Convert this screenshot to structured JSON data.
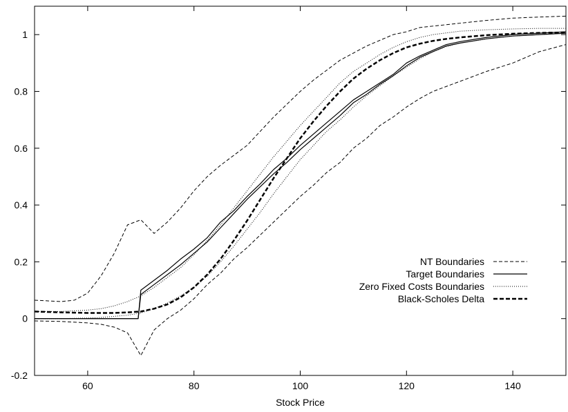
{
  "chart_data": {
    "type": "line",
    "title": "",
    "xlabel": "Stock Price",
    "ylabel": "",
    "xlim": [
      50,
      150
    ],
    "ylim": [
      -0.2,
      1.1
    ],
    "xticks": [
      60,
      80,
      100,
      120,
      140
    ],
    "xtick_labels": [
      "60",
      "80",
      "100",
      "120",
      "140"
    ],
    "yticks": [
      -0.2,
      0,
      0.2,
      0.4,
      0.6,
      0.8,
      1
    ],
    "ytick_labels": [
      "-0.2",
      "0",
      "0.2",
      "0.4",
      "0.6",
      "0.8",
      "1"
    ],
    "grid": false,
    "legend_position": "center-right",
    "series": [
      {
        "name": "NT Boundaries",
        "style": "dashed",
        "color": "#000000",
        "lines": [
          [
            [
              50,
              0.065
            ],
            [
              55,
              0.06
            ],
            [
              57.5,
              0.065
            ],
            [
              60,
              0.09
            ],
            [
              62.5,
              0.15
            ],
            [
              65,
              0.23
            ],
            [
              67.5,
              0.33
            ],
            [
              70,
              0.348
            ],
            [
              72.5,
              0.3
            ],
            [
              75,
              0.34
            ],
            [
              77.5,
              0.39
            ],
            [
              80,
              0.45
            ],
            [
              82.5,
              0.5
            ],
            [
              85,
              0.54
            ],
            [
              87.5,
              0.575
            ],
            [
              90,
              0.61
            ],
            [
              92.5,
              0.66
            ],
            [
              95,
              0.71
            ],
            [
              97.5,
              0.755
            ],
            [
              100,
              0.8
            ],
            [
              102.5,
              0.84
            ],
            [
              105,
              0.875
            ],
            [
              107.5,
              0.91
            ],
            [
              110,
              0.935
            ],
            [
              112.5,
              0.96
            ],
            [
              115,
              0.98
            ],
            [
              117.5,
              1.0
            ],
            [
              120,
              1.01
            ],
            [
              122.5,
              1.025
            ],
            [
              125,
              1.03
            ],
            [
              130,
              1.04
            ],
            [
              135,
              1.05
            ],
            [
              140,
              1.058
            ],
            [
              145,
              1.062
            ],
            [
              150,
              1.065
            ]
          ],
          [
            [
              50,
              -0.008
            ],
            [
              55,
              -0.01
            ],
            [
              60,
              -0.015
            ],
            [
              62.5,
              -0.02
            ],
            [
              65,
              -0.03
            ],
            [
              67.5,
              -0.05
            ],
            [
              70,
              -0.13
            ],
            [
              72.5,
              -0.04
            ],
            [
              75,
              0.0
            ],
            [
              77.5,
              0.03
            ],
            [
              80,
              0.07
            ],
            [
              82.5,
              0.12
            ],
            [
              85,
              0.16
            ],
            [
              87.5,
              0.21
            ],
            [
              90,
              0.25
            ],
            [
              92.5,
              0.295
            ],
            [
              95,
              0.34
            ],
            [
              97.5,
              0.385
            ],
            [
              100,
              0.43
            ],
            [
              102.5,
              0.47
            ],
            [
              105,
              0.515
            ],
            [
              107.5,
              0.55
            ],
            [
              110,
              0.6
            ],
            [
              112.5,
              0.635
            ],
            [
              115,
              0.68
            ],
            [
              117.5,
              0.71
            ],
            [
              120,
              0.745
            ],
            [
              122.5,
              0.775
            ],
            [
              125,
              0.8
            ],
            [
              130,
              0.835
            ],
            [
              135,
              0.87
            ],
            [
              140,
              0.9
            ],
            [
              145,
              0.94
            ],
            [
              150,
              0.965
            ]
          ]
        ]
      },
      {
        "name": "Target Boundaries",
        "style": "solid",
        "color": "#000000",
        "lines": [
          [
            [
              50,
              0.0
            ],
            [
              60,
              0.0
            ],
            [
              69.5,
              0.0
            ],
            [
              70,
              0.1
            ],
            [
              72.5,
              0.135
            ],
            [
              75,
              0.17
            ],
            [
              77.5,
              0.21
            ],
            [
              80,
              0.245
            ],
            [
              82.5,
              0.285
            ],
            [
              85,
              0.34
            ],
            [
              87.5,
              0.38
            ],
            [
              90,
              0.43
            ],
            [
              92.5,
              0.475
            ],
            [
              95,
              0.525
            ],
            [
              97.5,
              0.565
            ],
            [
              100,
              0.61
            ],
            [
              102.5,
              0.65
            ],
            [
              105,
              0.69
            ],
            [
              107.5,
              0.73
            ],
            [
              110,
              0.77
            ],
            [
              112.5,
              0.8
            ],
            [
              115,
              0.83
            ],
            [
              117.5,
              0.86
            ],
            [
              120,
              0.9
            ],
            [
              122.5,
              0.925
            ],
            [
              125,
              0.945
            ],
            [
              127.5,
              0.965
            ],
            [
              130,
              0.975
            ],
            [
              135,
              0.99
            ],
            [
              140,
              1.0
            ],
            [
              145,
              1.005
            ],
            [
              150,
              1.01
            ]
          ],
          [
            [
              50,
              0.0
            ],
            [
              60,
              0.0
            ],
            [
              69.5,
              0.0
            ],
            [
              70,
              0.085
            ],
            [
              72.5,
              0.12
            ],
            [
              75,
              0.155
            ],
            [
              77.5,
              0.19
            ],
            [
              80,
              0.23
            ],
            [
              82.5,
              0.27
            ],
            [
              85,
              0.32
            ],
            [
              87.5,
              0.37
            ],
            [
              90,
              0.42
            ],
            [
              92.5,
              0.465
            ],
            [
              95,
              0.51
            ],
            [
              97.5,
              0.55
            ],
            [
              100,
              0.595
            ],
            [
              102.5,
              0.635
            ],
            [
              105,
              0.675
            ],
            [
              107.5,
              0.715
            ],
            [
              110,
              0.76
            ],
            [
              112.5,
              0.79
            ],
            [
              115,
              0.825
            ],
            [
              117.5,
              0.855
            ],
            [
              120,
              0.89
            ],
            [
              122.5,
              0.92
            ],
            [
              125,
              0.94
            ],
            [
              127.5,
              0.96
            ],
            [
              130,
              0.97
            ],
            [
              135,
              0.985
            ],
            [
              140,
              0.995
            ],
            [
              145,
              1.0
            ],
            [
              150,
              1.005
            ]
          ]
        ]
      },
      {
        "name": "Zero Fixed Costs Boundaries",
        "style": "dotted",
        "color": "#000000",
        "lines": [
          [
            [
              50,
              0.025
            ],
            [
              55,
              0.025
            ],
            [
              60,
              0.03
            ],
            [
              62.5,
              0.035
            ],
            [
              65,
              0.045
            ],
            [
              67.5,
              0.06
            ],
            [
              70,
              0.08
            ],
            [
              72.5,
              0.11
            ],
            [
              75,
              0.145
            ],
            [
              77.5,
              0.18
            ],
            [
              80,
              0.225
            ],
            [
              82.5,
              0.275
            ],
            [
              85,
              0.33
            ],
            [
              87.5,
              0.39
            ],
            [
              90,
              0.45
            ],
            [
              92.5,
              0.51
            ],
            [
              95,
              0.57
            ],
            [
              97.5,
              0.625
            ],
            [
              100,
              0.68
            ],
            [
              102.5,
              0.73
            ],
            [
              105,
              0.78
            ],
            [
              107.5,
              0.83
            ],
            [
              110,
              0.87
            ],
            [
              112.5,
              0.9
            ],
            [
              115,
              0.93
            ],
            [
              117.5,
              0.955
            ],
            [
              120,
              0.975
            ],
            [
              122.5,
              0.99
            ],
            [
              125,
              1.0
            ],
            [
              130,
              1.012
            ],
            [
              135,
              1.017
            ],
            [
              140,
              1.02
            ],
            [
              145,
              1.022
            ],
            [
              150,
              1.022
            ]
          ],
          [
            [
              50,
              0.0
            ],
            [
              55,
              0.0
            ],
            [
              60,
              0.002
            ],
            [
              62.5,
              0.004
            ],
            [
              65,
              0.008
            ],
            [
              67.5,
              0.012
            ],
            [
              70,
              0.02
            ],
            [
              72.5,
              0.035
            ],
            [
              75,
              0.055
            ],
            [
              77.5,
              0.08
            ],
            [
              80,
              0.11
            ],
            [
              82.5,
              0.15
            ],
            [
              85,
              0.2
            ],
            [
              87.5,
              0.255
            ],
            [
              90,
              0.315
            ],
            [
              92.5,
              0.375
            ],
            [
              95,
              0.44
            ],
            [
              97.5,
              0.5
            ],
            [
              100,
              0.56
            ],
            [
              102.5,
              0.61
            ],
            [
              105,
              0.66
            ],
            [
              107.5,
              0.7
            ],
            [
              110,
              0.745
            ],
            [
              112.5,
              0.785
            ],
            [
              115,
              0.82
            ],
            [
              117.5,
              0.855
            ],
            [
              120,
              0.885
            ],
            [
              122.5,
              0.915
            ],
            [
              125,
              0.94
            ],
            [
              127.5,
              0.958
            ],
            [
              130,
              0.97
            ],
            [
              135,
              0.985
            ],
            [
              140,
              0.995
            ],
            [
              145,
              1.0
            ],
            [
              150,
              1.005
            ]
          ]
        ]
      },
      {
        "name": "Black-Scholes Delta",
        "style": "thick-dashed",
        "color": "#000000",
        "lines": [
          [
            [
              50,
              0.025
            ],
            [
              55,
              0.022
            ],
            [
              60,
              0.02
            ],
            [
              65,
              0.02
            ],
            [
              67.5,
              0.022
            ],
            [
              70,
              0.025
            ],
            [
              72.5,
              0.035
            ],
            [
              75,
              0.05
            ],
            [
              77.5,
              0.075
            ],
            [
              80,
              0.11
            ],
            [
              82.5,
              0.155
            ],
            [
              85,
              0.21
            ],
            [
              87.5,
              0.275
            ],
            [
              90,
              0.345
            ],
            [
              92.5,
              0.42
            ],
            [
              95,
              0.495
            ],
            [
              97.5,
              0.565
            ],
            [
              100,
              0.635
            ],
            [
              102.5,
              0.695
            ],
            [
              105,
              0.75
            ],
            [
              107.5,
              0.8
            ],
            [
              110,
              0.845
            ],
            [
              112.5,
              0.88
            ],
            [
              115,
              0.91
            ],
            [
              117.5,
              0.935
            ],
            [
              120,
              0.955
            ],
            [
              122.5,
              0.968
            ],
            [
              125,
              0.978
            ],
            [
              127.5,
              0.985
            ],
            [
              130,
              0.99
            ],
            [
              135,
              0.998
            ],
            [
              140,
              1.003
            ],
            [
              145,
              1.006
            ],
            [
              150,
              1.008
            ]
          ]
        ]
      }
    ]
  }
}
